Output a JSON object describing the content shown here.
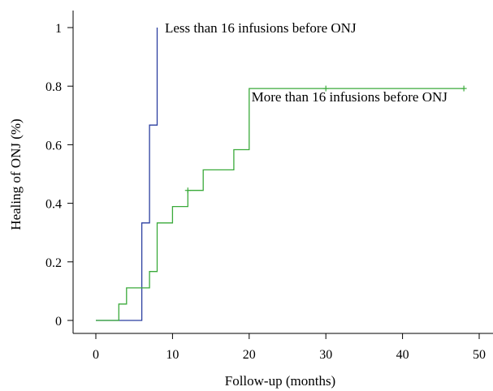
{
  "chart_data": {
    "type": "line",
    "step": true,
    "title": "",
    "xlabel": "Follow-up (months)",
    "ylabel": "Healing of ONJ (%)",
    "xlim": [
      -3,
      52
    ],
    "ylim": [
      -0.05,
      1.05
    ],
    "xticks": [
      0,
      10,
      20,
      30,
      40,
      50
    ],
    "yticks": [
      0,
      0.2,
      0.4,
      0.6,
      0.8,
      1
    ],
    "xtick_labels": [
      "0",
      "10",
      "20",
      "30",
      "40",
      "50"
    ],
    "ytick_labels": [
      "0",
      "0.2",
      "0.4",
      "0.6",
      "0.8",
      "1"
    ],
    "grid": false,
    "series": [
      {
        "color": "#2b3fa0",
        "x": [
          0,
          6,
          6,
          7,
          7,
          8,
          8
        ],
        "y": [
          0,
          0,
          0.333,
          0.333,
          0.667,
          0.667,
          1.0
        ],
        "censored": []
      },
      {
        "color": "#3aaa3a",
        "x": [
          0,
          3,
          3,
          4,
          4,
          7,
          7,
          8,
          8,
          10,
          10,
          12,
          12,
          14,
          14,
          18,
          18,
          20,
          20,
          48
        ],
        "y": [
          0,
          0,
          0.056,
          0.056,
          0.111,
          0.111,
          0.167,
          0.167,
          0.333,
          0.333,
          0.389,
          0.389,
          0.444,
          0.444,
          0.514,
          0.514,
          0.583,
          0.583,
          0.792,
          0.792
        ],
        "censored": [
          [
            12,
            0.444
          ],
          [
            30,
            0.792
          ],
          [
            48,
            0.792
          ]
        ]
      }
    ],
    "annotations": [
      {
        "text": "Less than 16 infusions before ONJ",
        "x": 9,
        "y": 1.0
      },
      {
        "text": "More than 16 infusions before ONJ",
        "x": 20.3,
        "y": 0.765
      }
    ]
  }
}
